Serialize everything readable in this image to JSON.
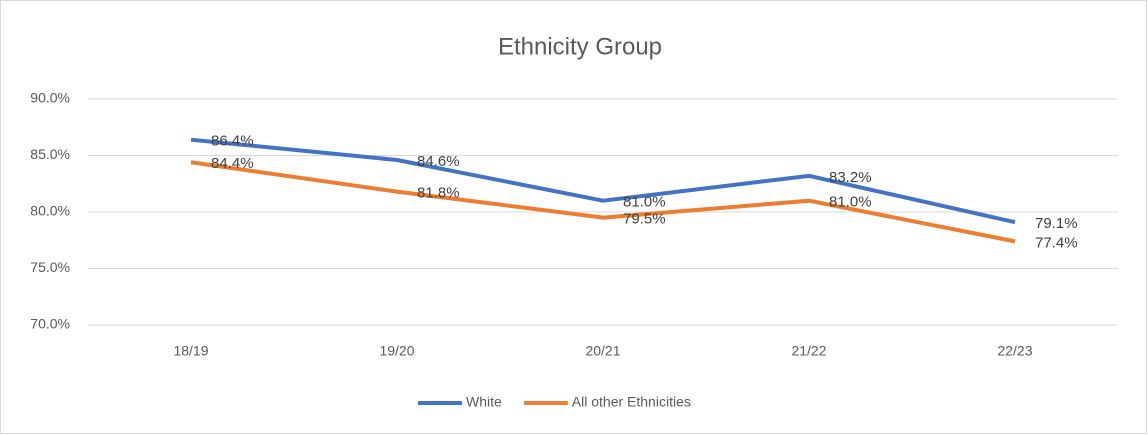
{
  "chart_data": {
    "type": "line",
    "title": "Ethnicity Group",
    "categories": [
      "18/19",
      "19/20",
      "20/21",
      "21/22",
      "22/23"
    ],
    "series": [
      {
        "name": "White",
        "color": "#4472c4",
        "values": [
          86.4,
          84.6,
          81.0,
          83.2,
          79.1
        ],
        "value_labels": [
          "86.4%",
          "84.6%",
          "81.0%",
          "83.2%",
          "79.1%"
        ]
      },
      {
        "name": "All other Ethnicities",
        "color": "#ed7d31",
        "values": [
          84.4,
          81.8,
          79.5,
          81.0,
          77.4
        ],
        "value_labels": [
          "84.4%",
          "81.8%",
          "79.5%",
          "81.0%",
          "77.4%"
        ]
      }
    ],
    "ylim": [
      70,
      90
    ],
    "yticks": [
      {
        "value": 70,
        "label": "70.0%"
      },
      {
        "value": 75,
        "label": "75.0%"
      },
      {
        "value": 80,
        "label": "80.0%"
      },
      {
        "value": 85,
        "label": "85.0%"
      },
      {
        "value": 90,
        "label": "90.0%"
      }
    ],
    "grid": true,
    "legend": "bottom"
  }
}
